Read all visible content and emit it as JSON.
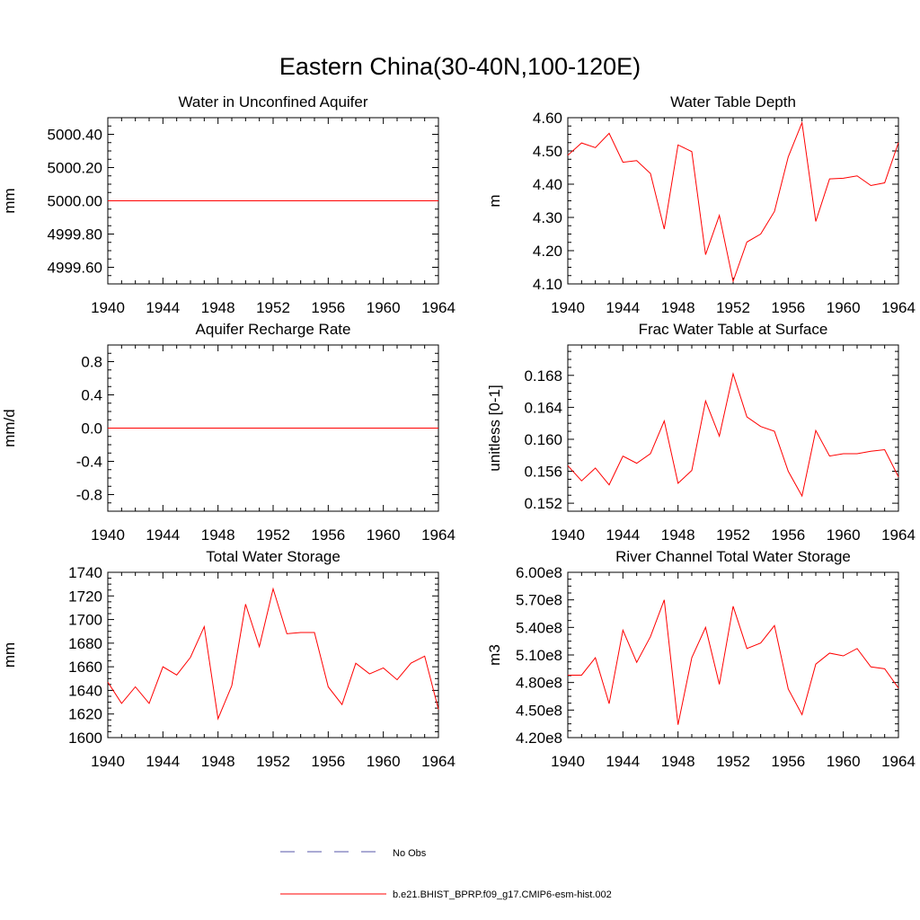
{
  "title": "Eastern China(30-40N,100-120E)",
  "colors": {
    "model": "#ff0000",
    "obs": "#5555aa",
    "axis": "#000000"
  },
  "legend": {
    "items": [
      {
        "label": "No Obs",
        "style": "dashed",
        "color": "#5555aa"
      },
      {
        "label": "b.e21.BHIST_BPRP.f09_g17.CMIP6-esm-hist.002",
        "style": "solid",
        "color": "#ff0000"
      }
    ]
  },
  "chart_data": [
    {
      "type": "line",
      "title": "Water in Unconfined Aquifer",
      "ylabel": "mm",
      "xlim": [
        1940,
        1964
      ],
      "ylim": [
        4999.5,
        5000.5
      ],
      "xticks": [
        "1940",
        "1944",
        "1948",
        "1952",
        "1956",
        "1960",
        "1964"
      ],
      "yticks": [
        "4999.60",
        "4999.80",
        "5000.00",
        "5000.20",
        "5000.40"
      ],
      "x": [
        1940,
        1941,
        1942,
        1943,
        1944,
        1945,
        1946,
        1947,
        1948,
        1949,
        1950,
        1951,
        1952,
        1953,
        1954,
        1955,
        1956,
        1957,
        1958,
        1959,
        1960,
        1961,
        1962,
        1963,
        1964
      ],
      "series": [
        {
          "values": [
            5000.0,
            5000.0,
            5000.0,
            5000.0,
            5000.0,
            5000.0,
            5000.0,
            5000.0,
            5000.0,
            5000.0,
            5000.0,
            5000.0,
            5000.0,
            5000.0,
            5000.0,
            5000.0,
            5000.0,
            5000.0,
            5000.0,
            5000.0,
            5000.0,
            5000.0,
            5000.0,
            5000.0,
            5000.0
          ]
        }
      ]
    },
    {
      "type": "line",
      "title": "Water Table Depth",
      "ylabel": "m",
      "xlim": [
        1940,
        1964
      ],
      "ylim": [
        4.1,
        4.6
      ],
      "xticks": [
        "1940",
        "1944",
        "1948",
        "1952",
        "1956",
        "1960",
        "1964"
      ],
      "yticks": [
        "4.10",
        "4.20",
        "4.30",
        "4.40",
        "4.50",
        "4.60"
      ],
      "x": [
        1940,
        1941,
        1942,
        1943,
        1944,
        1945,
        1946,
        1947,
        1948,
        1949,
        1950,
        1951,
        1952,
        1953,
        1954,
        1955,
        1956,
        1957,
        1958,
        1959,
        1960,
        1961,
        1962,
        1963,
        1964
      ],
      "series": [
        {
          "values": [
            4.487,
            4.524,
            4.51,
            4.553,
            4.466,
            4.471,
            4.432,
            4.265,
            4.518,
            4.498,
            4.188,
            4.306,
            4.108,
            4.226,
            4.25,
            4.318,
            4.482,
            4.585,
            4.288,
            4.416,
            4.418,
            4.425,
            4.396,
            4.404,
            4.525
          ]
        }
      ]
    },
    {
      "type": "line",
      "title": "Aquifer Recharge Rate",
      "ylabel": "mm/d",
      "xlim": [
        1940,
        1964
      ],
      "ylim": [
        -1.0,
        1.0
      ],
      "xticks": [
        "1940",
        "1944",
        "1948",
        "1952",
        "1956",
        "1960",
        "1964"
      ],
      "yticks": [
        "-0.8",
        "-0.4",
        "0.0",
        "0.4",
        "0.8"
      ],
      "x": [
        1940,
        1941,
        1942,
        1943,
        1944,
        1945,
        1946,
        1947,
        1948,
        1949,
        1950,
        1951,
        1952,
        1953,
        1954,
        1955,
        1956,
        1957,
        1958,
        1959,
        1960,
        1961,
        1962,
        1963,
        1964
      ],
      "series": [
        {
          "values": [
            0,
            0,
            0,
            0,
            0,
            0,
            0,
            0,
            0,
            0,
            0,
            0,
            0,
            0,
            0,
            0,
            0,
            0,
            0,
            0,
            0,
            0,
            0,
            0,
            0
          ]
        }
      ]
    },
    {
      "type": "line",
      "title": "Frac Water Table at Surface",
      "ylabel": "unitless [0-1]",
      "xlim": [
        1940,
        1964
      ],
      "ylim": [
        0.151,
        0.1718
      ],
      "xticks": [
        "1940",
        "1944",
        "1948",
        "1952",
        "1956",
        "1960",
        "1964"
      ],
      "yticks": [
        "0.152",
        "0.156",
        "0.160",
        "0.164",
        "0.168"
      ],
      "x": [
        1940,
        1941,
        1942,
        1943,
        1944,
        1945,
        1946,
        1947,
        1948,
        1949,
        1950,
        1951,
        1952,
        1953,
        1954,
        1955,
        1956,
        1957,
        1958,
        1959,
        1960,
        1961,
        1962,
        1963,
        1964
      ],
      "series": [
        {
          "values": [
            0.1567,
            0.1548,
            0.1564,
            0.1543,
            0.1579,
            0.157,
            0.1582,
            0.1623,
            0.1545,
            0.1561,
            0.1648,
            0.1604,
            0.1682,
            0.1628,
            0.1616,
            0.161,
            0.156,
            0.1529,
            0.1611,
            0.1579,
            0.1582,
            0.1582,
            0.1585,
            0.1587,
            0.1553
          ]
        }
      ]
    },
    {
      "type": "line",
      "title": "Total Water Storage",
      "ylabel": "mm",
      "xlim": [
        1940,
        1964
      ],
      "ylim": [
        1600,
        1740
      ],
      "xticks": [
        "1940",
        "1944",
        "1948",
        "1952",
        "1956",
        "1960",
        "1964"
      ],
      "yticks": [
        "1600",
        "1620",
        "1640",
        "1660",
        "1680",
        "1700",
        "1720",
        "1740"
      ],
      "x": [
        1940,
        1941,
        1942,
        1943,
        1944,
        1945,
        1946,
        1947,
        1948,
        1949,
        1950,
        1951,
        1952,
        1953,
        1954,
        1955,
        1956,
        1957,
        1958,
        1959,
        1960,
        1961,
        1962,
        1963,
        1964
      ],
      "series": [
        {
          "values": [
            1647,
            1629,
            1643,
            1629,
            1660,
            1653,
            1668,
            1694,
            1616,
            1644,
            1713,
            1677,
            1726,
            1688,
            1689,
            1689,
            1643,
            1628,
            1663,
            1654,
            1659,
            1649,
            1663,
            1669,
            1624
          ]
        }
      ]
    },
    {
      "type": "line",
      "title": "River Channel Total Water Storage",
      "ylabel": "m3",
      "xlim": [
        1940,
        1964
      ],
      "ylim": [
        420000000,
        600000000
      ],
      "xticks": [
        "1940",
        "1944",
        "1948",
        "1952",
        "1956",
        "1960",
        "1964"
      ],
      "yticks": [
        "4.20e8",
        "4.50e8",
        "4.80e8",
        "5.10e8",
        "5.40e8",
        "5.70e8",
        "6.00e8"
      ],
      "x": [
        1940,
        1941,
        1942,
        1943,
        1944,
        1945,
        1946,
        1947,
        1948,
        1949,
        1950,
        1951,
        1952,
        1953,
        1954,
        1955,
        1956,
        1957,
        1958,
        1959,
        1960,
        1961,
        1962,
        1963,
        1964
      ],
      "series": [
        {
          "values": [
            488000000,
            488000000,
            507000000,
            457000000,
            537000000,
            502000000,
            530000000,
            570000000,
            434000000,
            507000000,
            540000000,
            478000000,
            563000000,
            517000000,
            523000000,
            542000000,
            473000000,
            445000000,
            500000000,
            512000000,
            509000000,
            517000000,
            497000000,
            495000000,
            474000000
          ]
        }
      ]
    }
  ]
}
